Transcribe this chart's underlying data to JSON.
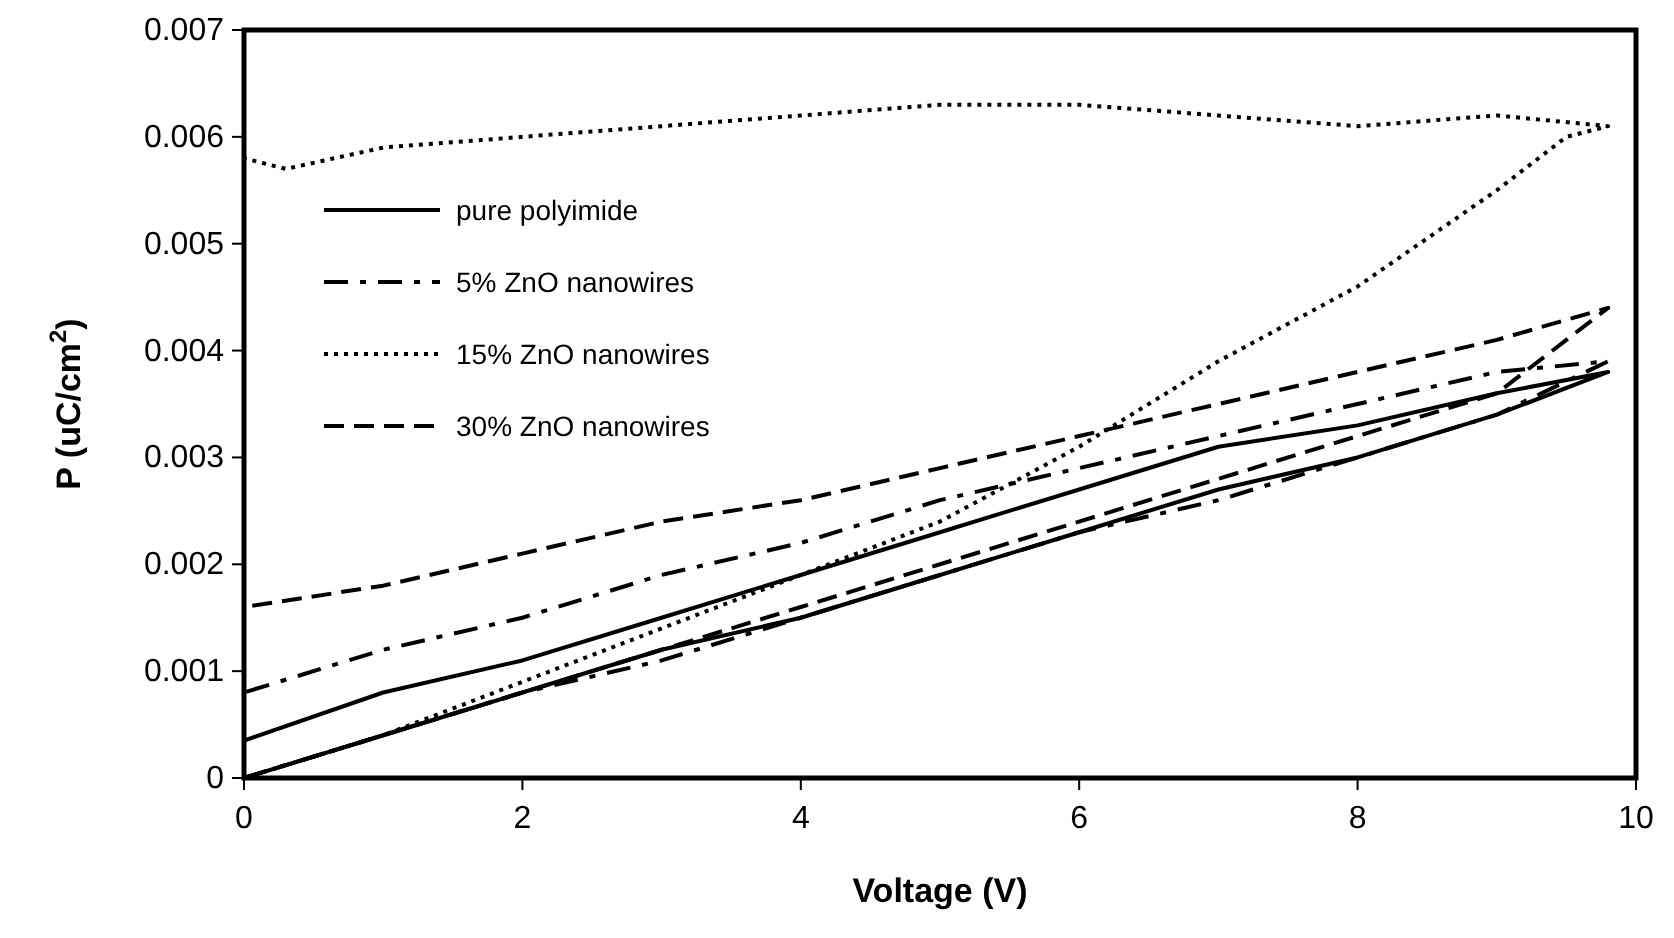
{
  "chart_data": {
    "type": "line",
    "xlabel": "Voltage (V)",
    "ylabel": "P (uC/cm$^{2}$)",
    "xlim": [
      0,
      10
    ],
    "ylim": [
      0,
      0.007
    ],
    "xticks": [
      0,
      2,
      4,
      6,
      8,
      10
    ],
    "yticks": [
      0,
      0.001,
      0.002,
      0.003,
      0.004,
      0.005,
      0.006,
      0.007
    ],
    "legend": "top left",
    "grid": false,
    "series": [
      {
        "name": "pure polyimide",
        "color": "#000000",
        "line_style": "solid",
        "x": [
          0,
          1,
          2,
          3,
          4,
          5,
          6,
          7,
          8,
          9,
          9.8,
          9,
          8,
          7,
          6,
          5,
          4,
          3,
          2,
          1,
          0
        ],
        "values": [
          0,
          0.0004,
          0.0008,
          0.0012,
          0.0015,
          0.0019,
          0.0023,
          0.0027,
          0.003,
          0.0034,
          0.0038,
          0.0036,
          0.0033,
          0.0031,
          0.0027,
          0.0023,
          0.0019,
          0.0015,
          0.0011,
          0.0008,
          0.00035
        ]
      },
      {
        "name": "5% ZnO nanowires",
        "color": "#000000",
        "line_style": "dashdot",
        "x": [
          0,
          1,
          2,
          3,
          4,
          5,
          6,
          7,
          8,
          9,
          9.8,
          9,
          8,
          7,
          6,
          5,
          4,
          3,
          2,
          1,
          0
        ],
        "values": [
          0,
          0.0004,
          0.0008,
          0.0011,
          0.0015,
          0.0019,
          0.0023,
          0.0026,
          0.003,
          0.0034,
          0.0039,
          0.0038,
          0.0035,
          0.0032,
          0.0029,
          0.0026,
          0.0022,
          0.0019,
          0.0015,
          0.0012,
          0.0008
        ]
      },
      {
        "name": "15% ZnO nanowires",
        "color": "#000000",
        "line_style": "dotted",
        "x": [
          0,
          1,
          2,
          3,
          4,
          5,
          6,
          7,
          8,
          9,
          9.5,
          9.8,
          9,
          8,
          7,
          6,
          5,
          4,
          3,
          2,
          1,
          0.3,
          0
        ],
        "values": [
          0,
          0.0004,
          0.0009,
          0.0014,
          0.0019,
          0.0024,
          0.0031,
          0.0039,
          0.0046,
          0.0055,
          0.006,
          0.0061,
          0.0062,
          0.0061,
          0.0062,
          0.0063,
          0.0063,
          0.0062,
          0.0061,
          0.006,
          0.0059,
          0.0057,
          0.0058
        ]
      },
      {
        "name": "30% ZnO nanowires",
        "color": "#000000",
        "line_style": "dashed",
        "x": [
          0,
          1,
          2,
          3,
          4,
          5,
          6,
          7,
          8,
          9,
          9.8,
          9,
          8,
          7,
          6,
          5,
          4,
          3,
          2,
          1,
          0
        ],
        "values": [
          0,
          0.0004,
          0.0008,
          0.0012,
          0.0016,
          0.002,
          0.0024,
          0.0028,
          0.0032,
          0.0036,
          0.0044,
          0.0041,
          0.0038,
          0.0035,
          0.0032,
          0.0029,
          0.0026,
          0.0024,
          0.0021,
          0.0018,
          0.0016
        ]
      }
    ]
  }
}
